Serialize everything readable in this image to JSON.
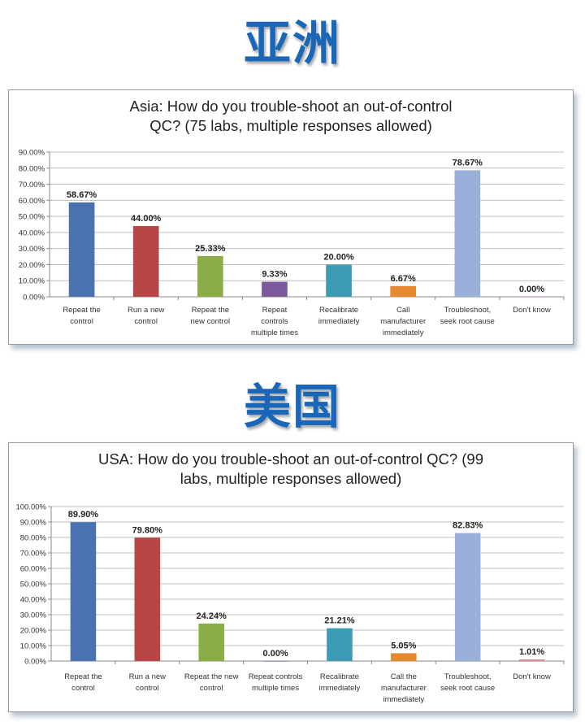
{
  "headings": [
    "亚洲",
    "美国"
  ],
  "chart_data": [
    {
      "type": "bar",
      "title_lines": [
        "Asia: How do you trouble-shoot an out-of-control",
        "QC?  (75 labs, multiple responses allowed)"
      ],
      "categories": [
        [
          "Repeat the",
          "control"
        ],
        [
          "Run a new",
          "control"
        ],
        [
          "Repeat the",
          "new control"
        ],
        [
          "Repeat",
          "controls",
          "multiple times"
        ],
        [
          "Recalibrate",
          "immediately"
        ],
        [
          "Call",
          "manufacturer",
          "immediately"
        ],
        [
          "Troubleshoot,",
          "seek root cause"
        ],
        [
          "Don't know"
        ]
      ],
      "values": [
        58.67,
        44.0,
        25.33,
        9.33,
        20.0,
        6.67,
        78.67,
        0.0
      ],
      "value_labels": [
        "58.67%",
        "44.00%",
        "25.33%",
        "9.33%",
        "20.00%",
        "6.67%",
        "78.67%",
        "0.00%"
      ],
      "colors": [
        "#4a72b0",
        "#b74644",
        "#8bad48",
        "#7a5a9c",
        "#3c9bb5",
        "#e68932",
        "#98b0da",
        "#d98a88"
      ],
      "y_ticks": [
        "0.00%",
        "10.00%",
        "20.00%",
        "30.00%",
        "40.00%",
        "50.00%",
        "60.00%",
        "70.00%",
        "80.00%",
        "90.00%"
      ],
      "ylim": [
        0,
        90
      ],
      "grid": true,
      "legend": false
    },
    {
      "type": "bar",
      "title_lines": [
        "USA: How do you trouble-shoot an out-of-control QC?  (99",
        "labs, multiple responses allowed)"
      ],
      "categories": [
        [
          "Repeat the",
          "control"
        ],
        [
          "Run a new",
          "control"
        ],
        [
          "Repeat the new",
          "control"
        ],
        [
          "Repeat controls",
          "multiple times"
        ],
        [
          "Recalibrate",
          "immediately"
        ],
        [
          "Call the",
          "manufacturer",
          "immediately"
        ],
        [
          "Troubleshoot,",
          "seek root cause"
        ],
        [
          "Don't know"
        ]
      ],
      "values": [
        89.9,
        79.8,
        24.24,
        0.0,
        21.21,
        5.05,
        82.83,
        1.01
      ],
      "value_labels": [
        "89.90%",
        "79.80%",
        "24.24%",
        "0.00%",
        "21.21%",
        "5.05%",
        "82.83%",
        "1.01%"
      ],
      "colors": [
        "#4a72b0",
        "#b74644",
        "#8bad48",
        "#7a5a9c",
        "#3c9bb5",
        "#e68932",
        "#98b0da",
        "#d98a88"
      ],
      "y_ticks": [
        "0.00%",
        "10.00%",
        "20.00%",
        "30.00%",
        "40.00%",
        "50.00%",
        "60.00%",
        "70.00%",
        "80.00%",
        "90.00%",
        "100.00%"
      ],
      "ylim": [
        0,
        100
      ],
      "grid": true,
      "legend": false
    }
  ]
}
